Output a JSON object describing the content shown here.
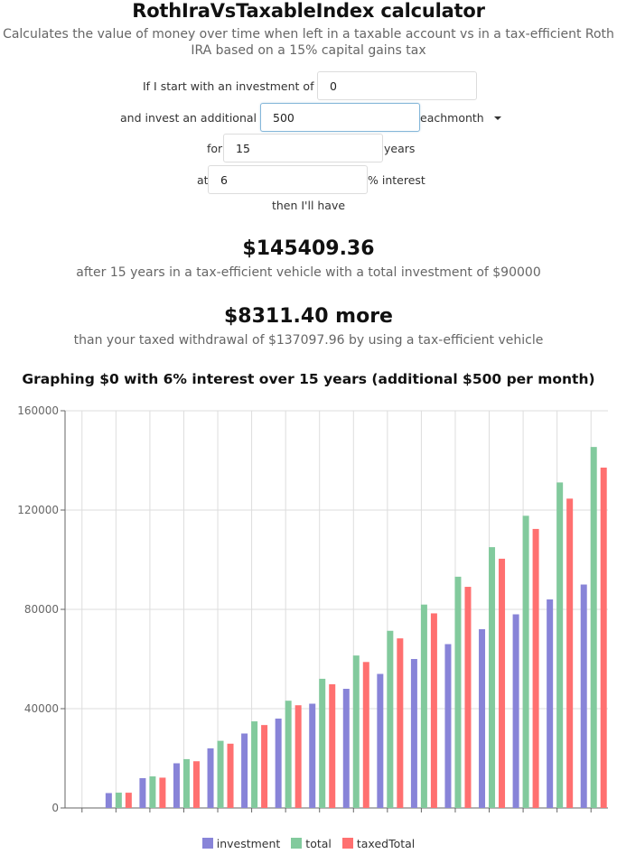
{
  "header": {
    "title": "RothIraVsTaxableIndex calculator",
    "subtitle_line1": "Calculates the value of money over time when left in a taxable account vs in a tax-efficient Roth",
    "subtitle_line2": "IRA based on a 15% capital gains tax"
  },
  "form": {
    "initial_label": "If I start with an investment of $",
    "initial_value": "0",
    "additional_label": "and invest an additional $",
    "additional_value": "500",
    "frequency_selected": "eachmonth",
    "years_prefix": "for",
    "years_value": "15",
    "years_suffix": "years",
    "interest_prefix": "at",
    "interest_value": "6",
    "interest_suffix": "% interest",
    "then_label": "then I'll have"
  },
  "results": {
    "total_value": "$145409.36",
    "total_caption": "after 15 years in a tax-efficient vehicle with a total investment of $90000",
    "difference_value": "$8311.40 more",
    "difference_caption": "than your taxed withdrawal of $137097.96 by using a tax-efficient vehicle"
  },
  "chart_title": "Graphing $0 with 6% interest over 15 years (additional $500 per month)",
  "chart_data": {
    "type": "bar",
    "categories": [
      "",
      "",
      "",
      "",
      "",
      "",
      "",
      "",
      "",
      "",
      "",
      "",
      "",
      "",
      "",
      ""
    ],
    "series": [
      {
        "name": "investment",
        "color": "#8884d8",
        "values": [
          0,
          6000,
          12000,
          18000,
          24000,
          30000,
          36000,
          42000,
          48000,
          54000,
          60000,
          66000,
          72000,
          78000,
          84000,
          90000
        ]
      },
      {
        "name": "total",
        "color": "#82ca9d",
        "values": [
          0,
          6168,
          12716,
          19668,
          27048,
          34883,
          43201,
          52032,
          61407,
          71360,
          81926,
          93144,
          105053,
          117697,
          131120,
          145409
        ]
      },
      {
        "name": "taxedTotal",
        "color": "#ff7070",
        "values": [
          0,
          6143,
          12209,
          18818,
          25891,
          33400,
          41371,
          49827,
          58796,
          68306,
          78388,
          89072,
          100395,
          112393,
          124602,
          137098
        ]
      }
    ],
    "yticks": [
      "0",
      "40000",
      "80000",
      "120000",
      "160000"
    ],
    "ylim": [
      0,
      160000
    ],
    "grid": true,
    "legend": "bottom-center"
  }
}
